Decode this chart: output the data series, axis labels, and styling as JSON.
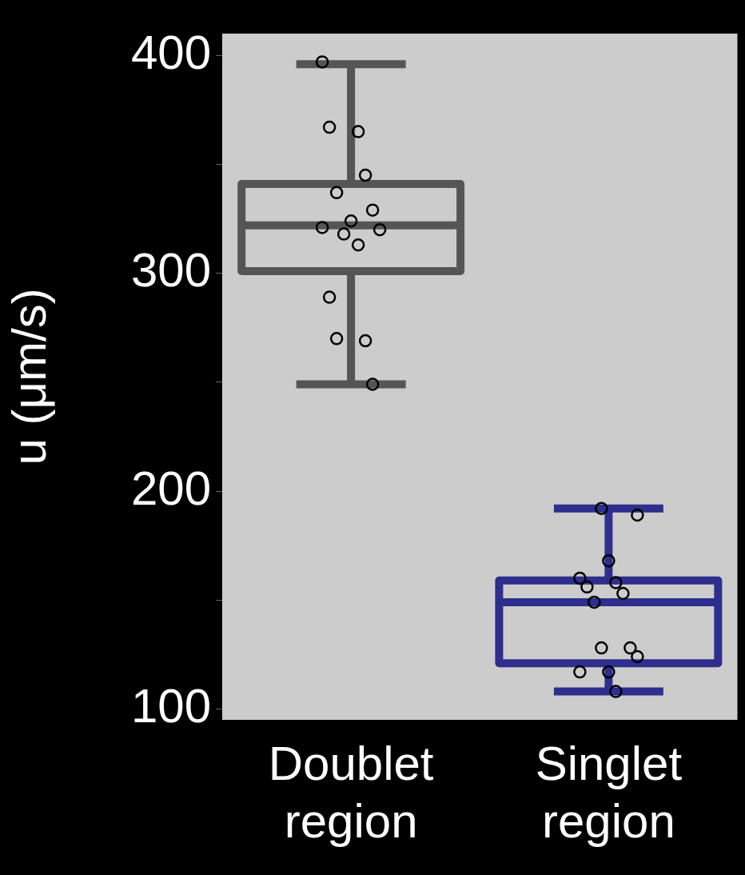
{
  "chart_data": {
    "type": "box",
    "ylabel": "u (μm/s)",
    "categories": [
      "Doublet region",
      "Singlet region"
    ],
    "ylim": [
      95,
      410
    ],
    "yticks": [
      100,
      {
        "value": 150,
        "label": null
      },
      200,
      {
        "value": 250,
        "label": null
      },
      300,
      {
        "value": 350,
        "label": null
      },
      400
    ],
    "series": [
      {
        "colors": [
          "#555555",
          "#2e2e8e"
        ],
        "boxes": [
          {
            "low": 249,
            "q1": 301,
            "median": 322,
            "q3": 341,
            "high": 396
          },
          {
            "low": 108,
            "q1": 121,
            "median": 149,
            "q3": 159,
            "high": 192
          }
        ]
      },
      {
        "type": "scatter",
        "color": "#000000",
        "marker": "circle",
        "x": [
          "Doublet region",
          "Doublet region",
          "Doublet region",
          "Doublet region",
          "Doublet region",
          "Doublet region",
          "Doublet region",
          "Doublet region",
          "Doublet region",
          "Doublet region",
          "Doublet region",
          "Doublet region",
          "Doublet region",
          "Doublet region",
          "Doublet region",
          "Singlet region",
          "Singlet region",
          "Singlet region",
          "Singlet region",
          "Singlet region",
          "Singlet region",
          "Singlet region",
          "Singlet region",
          "Singlet region",
          "Singlet region",
          "Singlet region",
          "Singlet region",
          "Singlet region",
          "Singlet region"
        ],
        "values": [
          397,
          365,
          367,
          345,
          337,
          329,
          318,
          320,
          324,
          321,
          313,
          289,
          269,
          270,
          249,
          192,
          189,
          168,
          160,
          158,
          156,
          153,
          149,
          128,
          128,
          124,
          117,
          117,
          108
        ]
      }
    ]
  }
}
